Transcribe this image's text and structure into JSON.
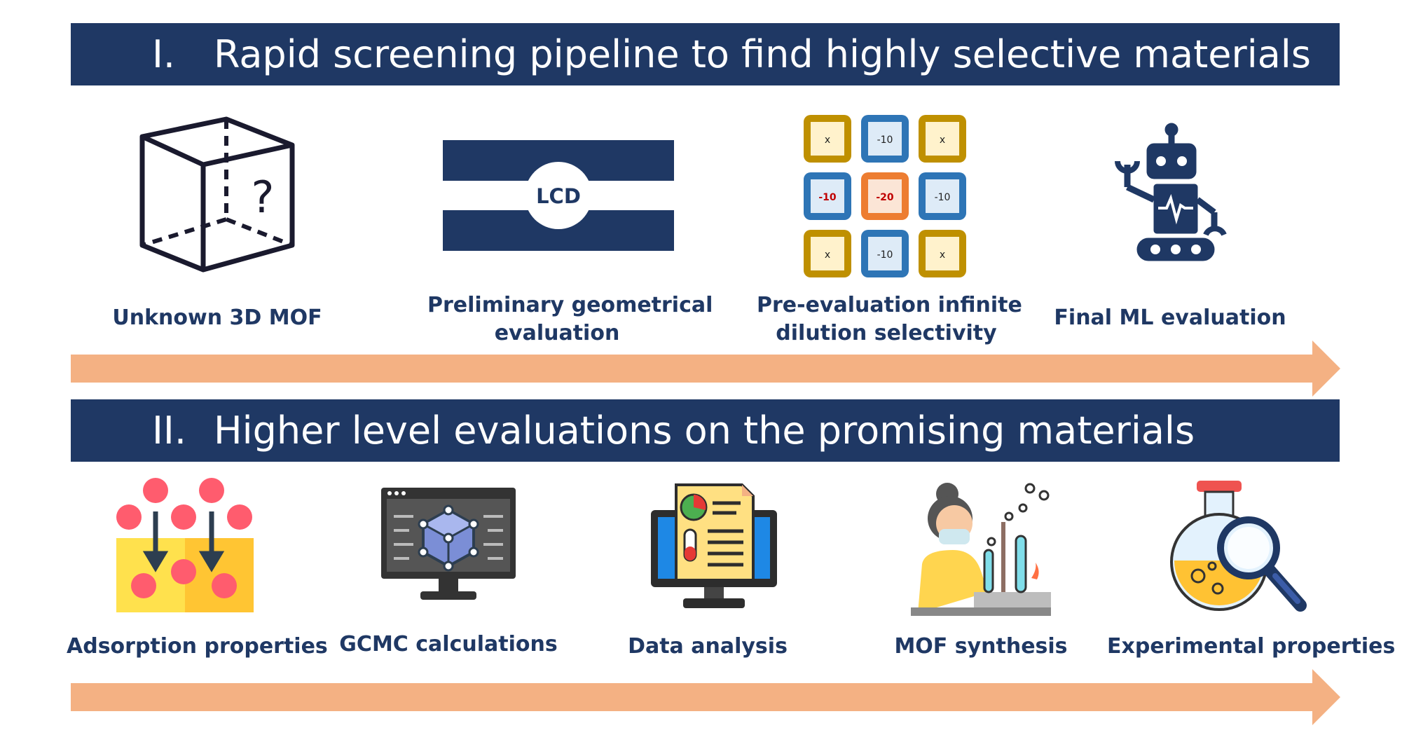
{
  "section1": {
    "numeral": "I.",
    "title": "Rapid screening pipeline to find highly selective materials",
    "steps": [
      {
        "label": "Unknown 3D MOF",
        "icon": "cube-question-icon"
      },
      {
        "label_line1": "Preliminary geometrical",
        "label_line2": "evaluation",
        "icon": "pore-diameter-icon",
        "icon_text": "LCD"
      },
      {
        "label_line1": "Pre-evaluation infinite",
        "label_line2": "dilution selectivity",
        "icon": "selectivity-grid-icon",
        "grid": [
          [
            "x",
            "-10",
            "x"
          ],
          [
            "-10",
            "-20",
            "-10"
          ],
          [
            "x",
            "-10",
            "x"
          ]
        ]
      },
      {
        "label": "Final ML evaluation",
        "icon": "robot-icon"
      }
    ]
  },
  "section2": {
    "numeral": "II.",
    "title": "Higher level evaluations on the promising materials",
    "steps": [
      {
        "label": "Adsorption properties",
        "icon": "adsorption-icon"
      },
      {
        "label": "GCMC calculations",
        "icon": "molecule-monitor-icon"
      },
      {
        "label": "Data analysis",
        "icon": "report-monitor-icon"
      },
      {
        "label": "MOF synthesis",
        "icon": "scientist-icon"
      },
      {
        "label": "Experimental properties",
        "icon": "flask-magnifier-icon"
      }
    ]
  },
  "colors": {
    "banner": "#1f3864",
    "arrow": "#f4b183",
    "text": "#1f3864"
  }
}
